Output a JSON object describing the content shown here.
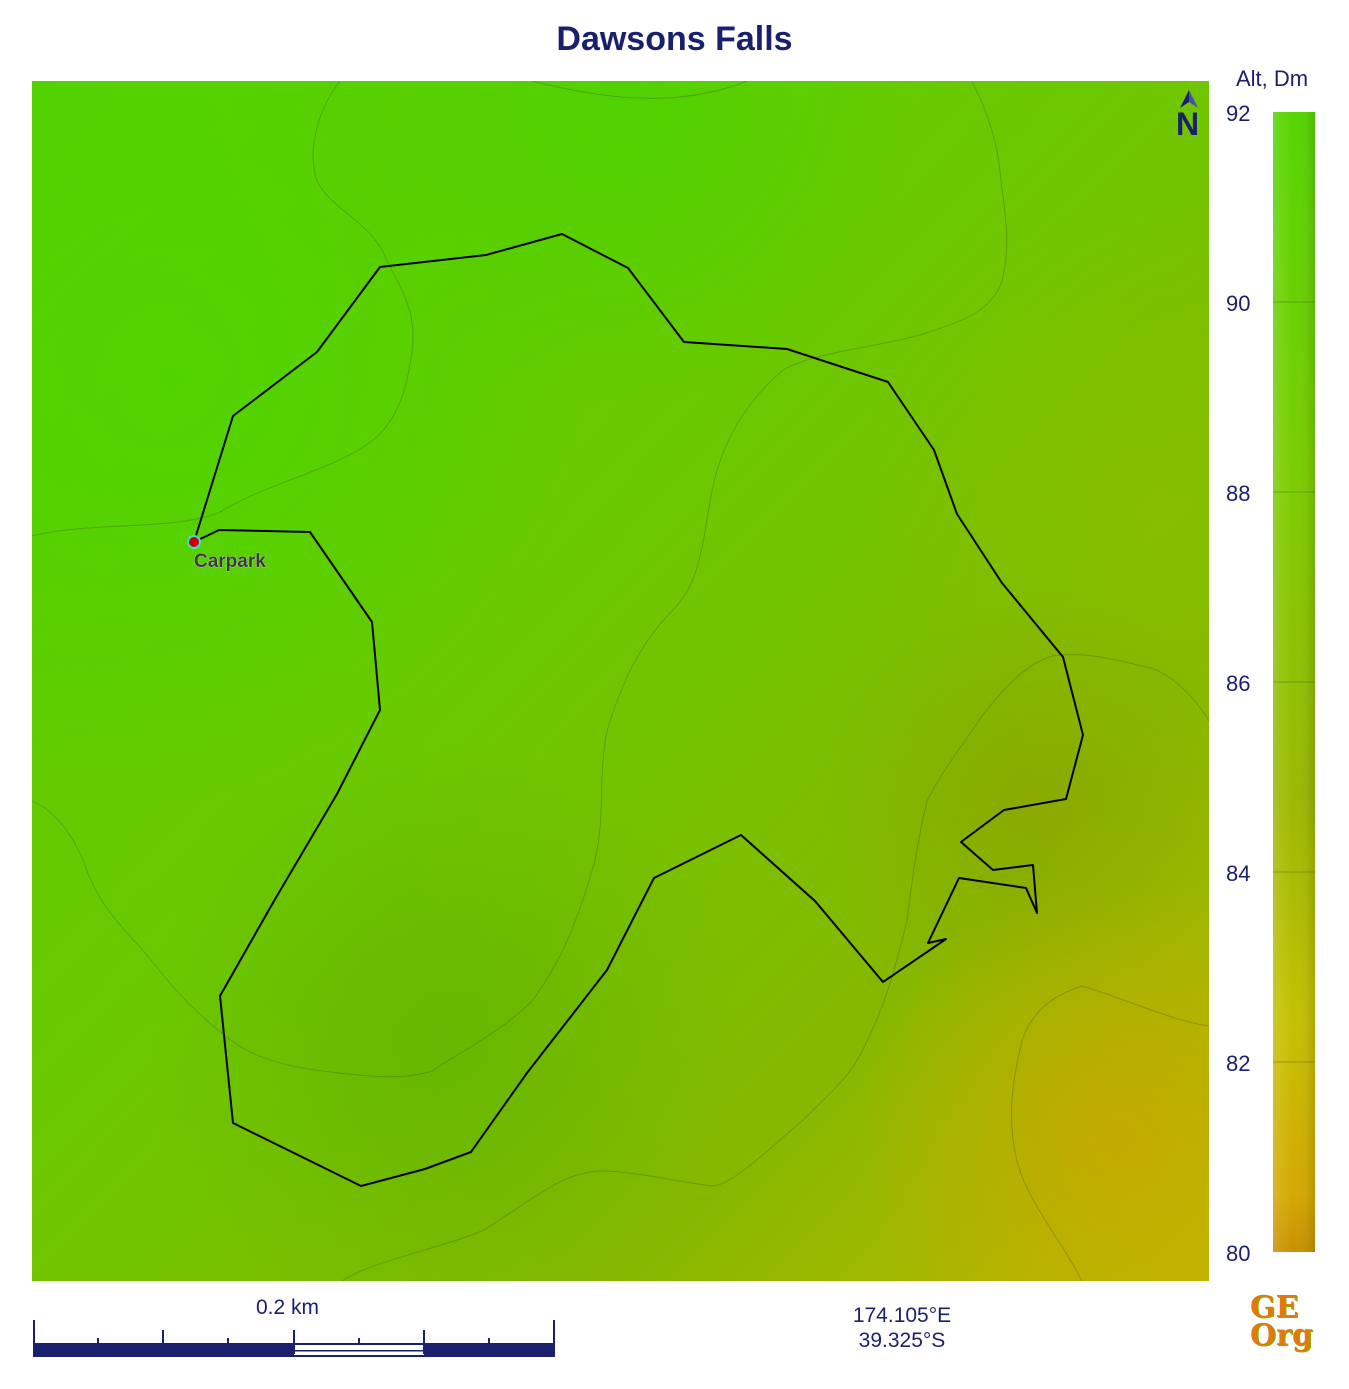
{
  "title": "Dawsons Falls",
  "map": {
    "north_label": "N",
    "marker_label": "Carpark",
    "colors": {
      "high": "#55d400",
      "mid": "#78c400",
      "low": "#c8b800",
      "route": "#000000",
      "marker": "#cc0000"
    }
  },
  "legend": {
    "title": "Alt, Dm",
    "ticks": [
      "92",
      "90",
      "88",
      "86",
      "84",
      "82",
      "80"
    ]
  },
  "scale": {
    "label": "0.2 km"
  },
  "coordinates": {
    "lon": "174.105°E",
    "lat": "39.325°S"
  },
  "logo": {
    "line1": "GE",
    "line2": "Org"
  }
}
